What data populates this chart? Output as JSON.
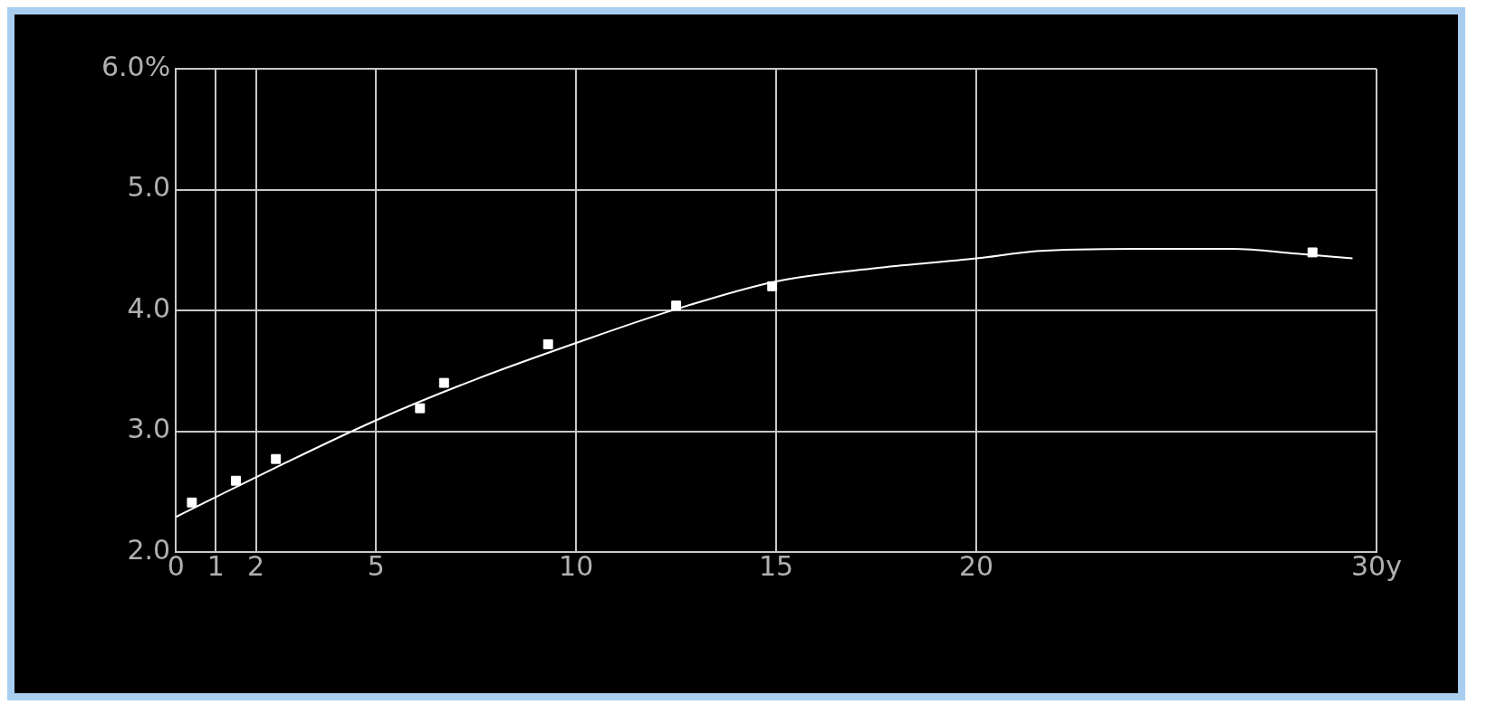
{
  "chart_data": {
    "type": "scatter",
    "xlim": [
      0,
      30
    ],
    "ylim": [
      2,
      6
    ],
    "xticks": [
      0,
      1,
      2,
      5,
      10,
      15,
      20,
      {
        "value": 30,
        "label": "30y"
      }
    ],
    "yticks": [
      {
        "value": 2,
        "label": "2.0"
      },
      {
        "value": 3,
        "label": "3.0"
      },
      {
        "value": 4,
        "label": "4.0"
      },
      {
        "value": 5,
        "label": "5.0"
      },
      {
        "value": 6,
        "label": "6.0%"
      }
    ],
    "grid": true,
    "legend": false,
    "series": [
      {
        "type": "scatter",
        "marker": "square",
        "color": "#ffffff",
        "x": [
          0.4,
          1.5,
          2.5,
          6.1,
          6.7,
          9.3,
          12.5,
          14.9,
          28.4
        ],
        "values": [
          2.41,
          2.59,
          2.77,
          3.19,
          3.4,
          3.72,
          4.04,
          4.2,
          4.48
        ]
      },
      {
        "type": "line",
        "marker": "none",
        "line_style": "solid",
        "color": "#ffffff",
        "x": [
          0,
          2.5,
          5,
          7.5,
          10,
          12.5,
          15,
          17.5,
          20,
          21.5,
          24,
          26.4,
          28,
          29.4
        ],
        "values": [
          2.29,
          2.7,
          3.09,
          3.43,
          3.73,
          4.01,
          4.24,
          4.35,
          4.43,
          4.49,
          4.51,
          4.51,
          4.47,
          4.43
        ]
      }
    ]
  }
}
